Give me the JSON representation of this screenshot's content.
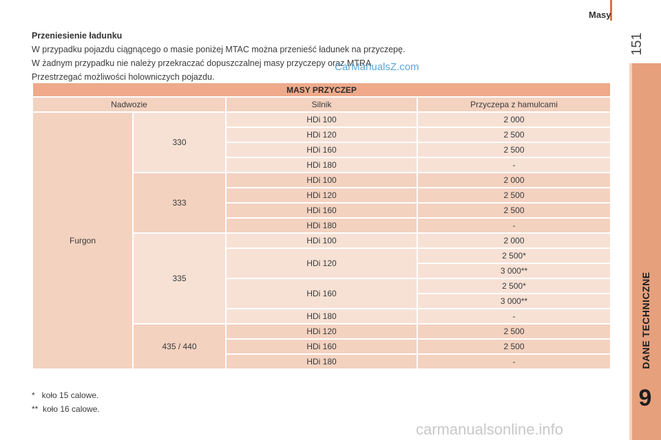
{
  "header": {
    "section_title": "Masy",
    "page_number": "151",
    "chapter_label": "DANE TECHNICZNE",
    "chapter_number": "9"
  },
  "intro": {
    "heading": "Przeniesienie ładunku",
    "lines": [
      "W przypadku pojazdu ciągnącego o masie poniżej MTAC można przenieść ładunek na przyczepę.",
      "W żadnym przypadku nie należy przekraczać dopuszczalnej masy przyczepy oraz MTRA.",
      "Przestrzegać możliwości holowniczych pojazdu."
    ]
  },
  "table": {
    "title": "MASY PRZYCZEP",
    "headers": [
      "Nadwozie",
      "Silnik",
      "Przyczepa z hamulcami"
    ],
    "body_type": "Furgon",
    "variants": [
      "330",
      "333",
      "335",
      "435 / 440"
    ],
    "rows": [
      {
        "engine": "HDi 100",
        "mass": "2 000"
      },
      {
        "engine": "HDi 120",
        "mass": "2 500"
      },
      {
        "engine": "HDi 160",
        "mass": "2 500"
      },
      {
        "engine": "HDi 180",
        "mass": "-"
      },
      {
        "engine": "HDi 100",
        "mass": "2 000"
      },
      {
        "engine": "HDi 120",
        "mass": "2 500"
      },
      {
        "engine": "HDi 160",
        "mass": "2 500"
      },
      {
        "engine": "HDi 180",
        "mass": "-"
      },
      {
        "engine": "HDi 100",
        "mass": "2 000"
      },
      {
        "engine": "HDi 120",
        "mass": "2 500*",
        "mass_alt": "3 000**"
      },
      {
        "engine": "HDi 160",
        "mass": "2 500*",
        "mass_alt": "3 000**"
      },
      {
        "engine": "HDi 180",
        "mass": "-"
      },
      {
        "engine": "HDi 120",
        "mass": "2 500"
      },
      {
        "engine": "HDi 160",
        "mass": "2 500"
      },
      {
        "engine": "HDi 180",
        "mass": "-"
      }
    ]
  },
  "notes": [
    "*   koło 15 calowe.",
    "**  koło 16 calowe."
  ],
  "watermarks": {
    "top": "CarManualsZ.com",
    "bottom": "carmanualsonline.info"
  },
  "colors": {
    "accent": "#d9734a",
    "side_tab": "#e6a07c",
    "table_title": "#eeaa8b",
    "row_light": "#f7e1d5",
    "row_strong": "#f3d2c0"
  }
}
